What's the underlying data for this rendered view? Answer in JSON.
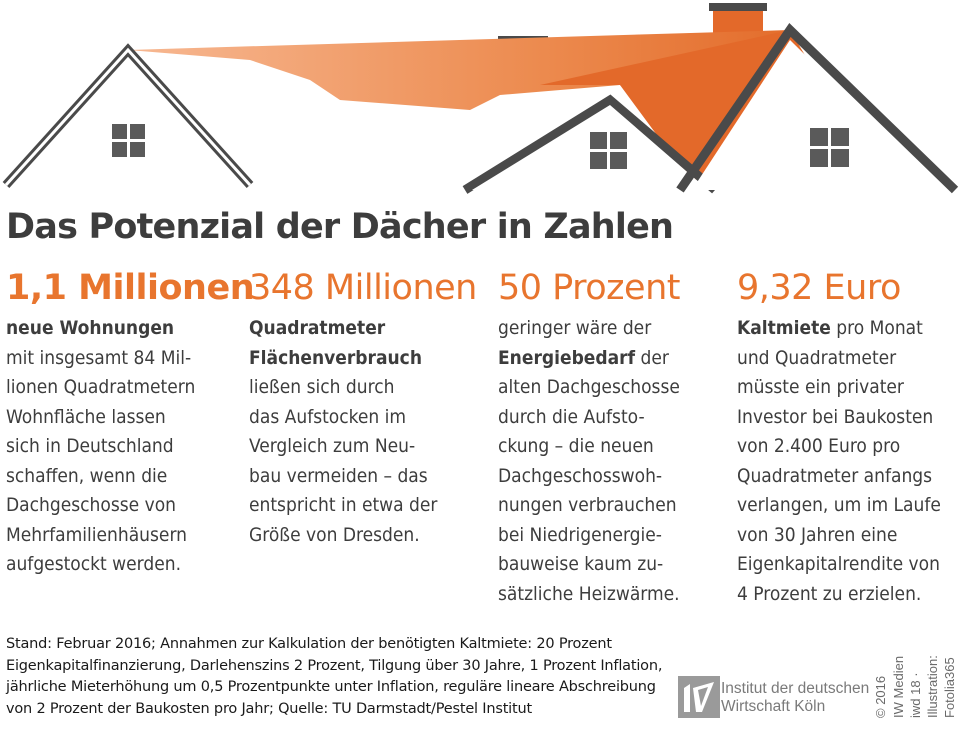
{
  "title": "Das Potenzial der Dächer in Zahlen",
  "facts": [
    {
      "value": "1,1 Millionen",
      "lines": [
        [
          {
            "t": "neue Wohnungen",
            "b": true
          }
        ],
        [
          {
            "t": "mit insgesamt 84 Mil-",
            "b": false
          }
        ],
        [
          {
            "t": "lionen Quadratmetern",
            "b": false
          }
        ],
        [
          {
            "t": "Wohnfläche lassen",
            "b": false
          }
        ],
        [
          {
            "t": "sich in Deutschland",
            "b": false
          }
        ],
        [
          {
            "t": "schaffen, wenn die",
            "b": false
          }
        ],
        [
          {
            "t": "Dachgeschosse von",
            "b": false
          }
        ],
        [
          {
            "t": "Mehrfamilienhäusern",
            "b": false
          }
        ],
        [
          {
            "t": "aufgestockt werden.",
            "b": false
          }
        ]
      ]
    },
    {
      "value": "348 Millionen",
      "lines": [
        [
          {
            "t": "Quadratmeter",
            "b": true
          }
        ],
        [
          {
            "t": "Flächenverbrauch",
            "b": true
          }
        ],
        [
          {
            "t": "ließen sich durch",
            "b": false
          }
        ],
        [
          {
            "t": "das Aufstocken im",
            "b": false
          }
        ],
        [
          {
            "t": "Vergleich zum Neu-",
            "b": false
          }
        ],
        [
          {
            "t": "bau vermeiden – das",
            "b": false
          }
        ],
        [
          {
            "t": "entspricht in etwa der",
            "b": false
          }
        ],
        [
          {
            "t": "Größe von Dresden.",
            "b": false
          }
        ]
      ]
    },
    {
      "value": "50 Prozent",
      "lines": [
        [
          {
            "t": "geringer wäre der",
            "b": false
          }
        ],
        [
          {
            "t": "Energiebedarf",
            "b": true
          },
          {
            "t": " der",
            "b": false
          }
        ],
        [
          {
            "t": "alten Dachgeschosse",
            "b": false
          }
        ],
        [
          {
            "t": "durch die Aufsto-",
            "b": false
          }
        ],
        [
          {
            "t": "ckung – die neuen",
            "b": false
          }
        ],
        [
          {
            "t": "Dachgeschosswoh-",
            "b": false
          }
        ],
        [
          {
            "t": "nungen verbrauchen",
            "b": false
          }
        ],
        [
          {
            "t": "bei Niedrigenergie-",
            "b": false
          }
        ],
        [
          {
            "t": "bauweise kaum zu-",
            "b": false
          }
        ],
        [
          {
            "t": "sätzliche Heizwärme.",
            "b": false
          }
        ]
      ]
    },
    {
      "value": "9,32 Euro",
      "lines": [
        [
          {
            "t": "Kaltmiete",
            "b": true
          },
          {
            "t": " pro Monat",
            "b": false
          }
        ],
        [
          {
            "t": "und Quadratmeter",
            "b": false
          }
        ],
        [
          {
            "t": "müsste ein privater",
            "b": false
          }
        ],
        [
          {
            "t": "Investor bei Baukosten",
            "b": false
          }
        ],
        [
          {
            "t": "von 2.400 Euro pro",
            "b": false
          }
        ],
        [
          {
            "t": "Quadratmeter anfangs",
            "b": false
          }
        ],
        [
          {
            "t": "verlangen, um im Laufe",
            "b": false
          }
        ],
        [
          {
            "t": "von 30 Jahren eine",
            "b": false
          }
        ],
        [
          {
            "t": "Eigenkapitalrendite von",
            "b": false
          }
        ],
        [
          {
            "t": "4 Prozent zu erzielen.",
            "b": false
          }
        ]
      ]
    }
  ],
  "footnote": [
    "Stand: Februar 2016; Annahmen zur Kalkulation der benötigten Kaltmiete: 20 Prozent",
    "Eigenkapitalfinanzierung, Darlehenszins 2 Prozent, Tilgung über 30 Jahre, 1 Prozent Inflation,",
    "jährliche Mieterhöhung um 0,5 Prozentpunkte unter Inflation, reguläre lineare Abschreibung",
    "von 2 Prozent der Baukosten pro Jahr; Quelle: TU Darmstadt/Pestel Institut"
  ],
  "institute": {
    "line1": "Institut der deutschen",
    "line2": "Wirtschaft Köln",
    "logo_text": "iw"
  },
  "credits": [
    "© 2016",
    "IW Medien",
    "iwd 18 ·",
    "Illustration:",
    "Fotolia365"
  ],
  "colors": {
    "accent": "#e8752e",
    "text": "#3d3d3d",
    "roof_light": "#f6b48a",
    "roof_dark": "#e3692a",
    "outline": "#4a4a4a"
  }
}
